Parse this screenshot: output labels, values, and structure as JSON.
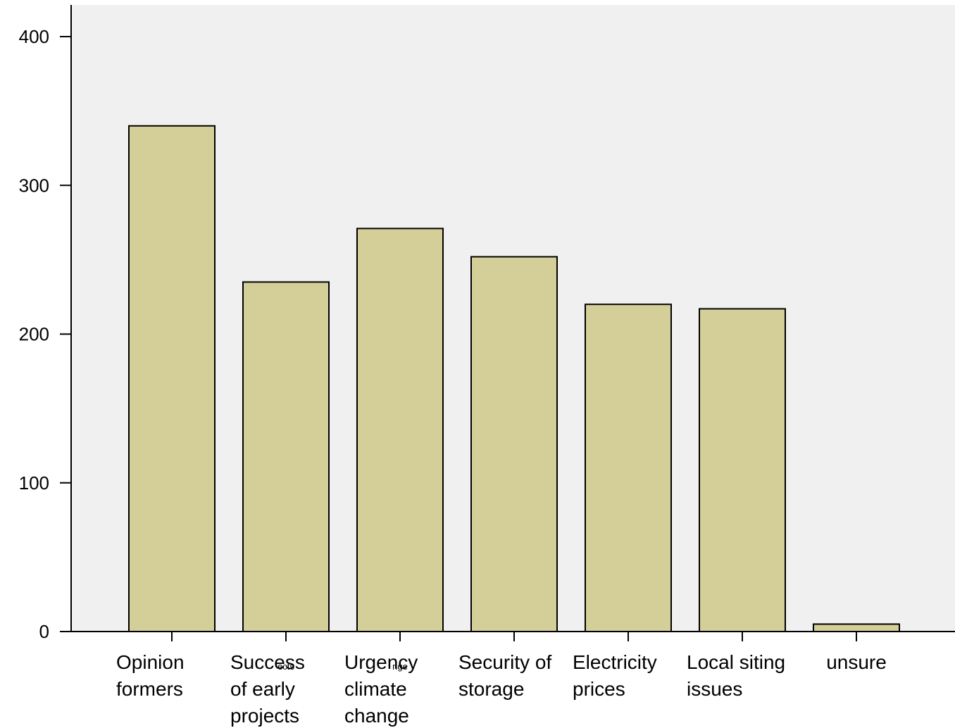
{
  "chart_data": {
    "type": "bar",
    "categories": [
      [
        "Opinion",
        "formers"
      ],
      [
        "Success",
        "of early",
        "projects"
      ],
      [
        "Urgency",
        "climate",
        "change"
      ],
      [
        "Security of",
        "storage"
      ],
      [
        "Electricity",
        "prices"
      ],
      [
        "Local siting",
        "issues"
      ],
      [
        "unsure"
      ]
    ],
    "values": [
      340,
      235,
      271,
      252,
      220,
      217,
      5
    ],
    "overlap_text": [
      "",
      "ects",
      "nge",
      "",
      "",
      "",
      ""
    ],
    "yticks": [
      0,
      100,
      200,
      300,
      400
    ],
    "ylim": [
      0,
      420
    ],
    "title": "",
    "xlabel": "",
    "ylabel": "",
    "colors": {
      "bar_fill": "#d4ce98",
      "bar_stroke": "#000000",
      "plot_background": "#f0f0f0",
      "page_background": "#ffffff"
    }
  }
}
